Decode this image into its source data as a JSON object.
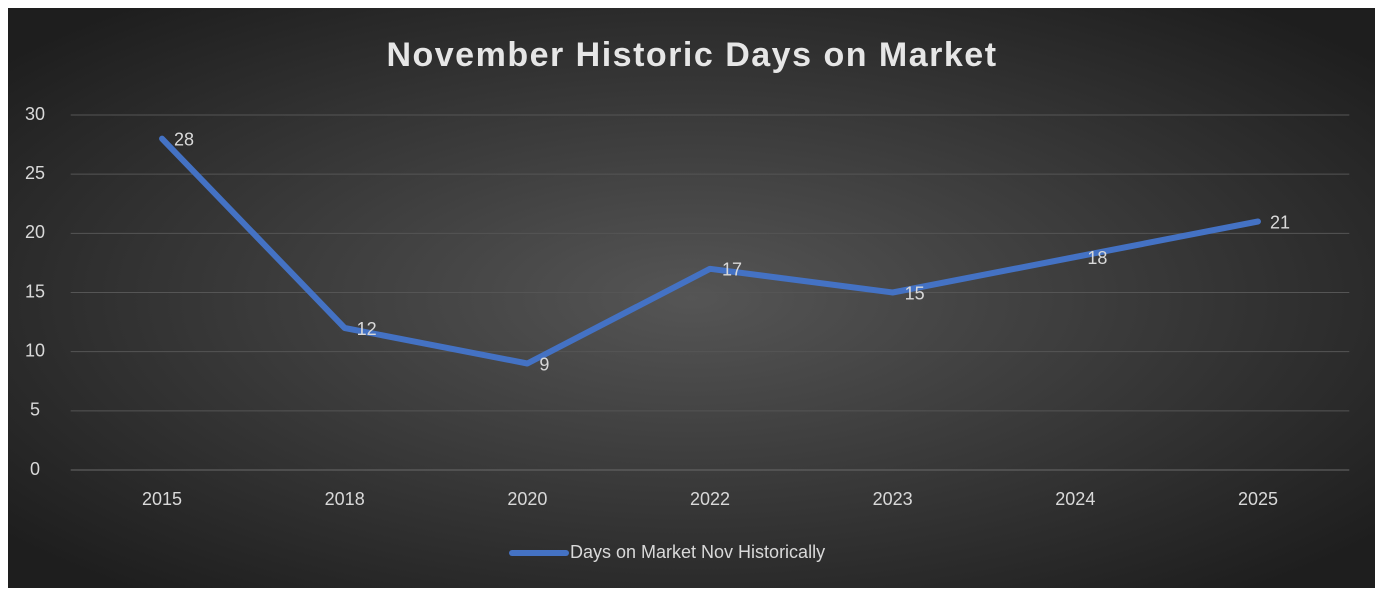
{
  "chart_data": {
    "type": "line",
    "title": "November Historic Days on Market",
    "categories": [
      "2015",
      "2018",
      "2020",
      "2022",
      "2023",
      "2024",
      "2025"
    ],
    "series": [
      {
        "name": "Days on Market Nov Historically",
        "color": "#4472c4",
        "values": [
          28,
          12,
          9,
          17,
          15,
          18,
          21
        ]
      }
    ],
    "ylim": [
      0,
      30
    ],
    "yticks": [
      0,
      5,
      10,
      15,
      20,
      25,
      30
    ],
    "grid": true,
    "legend": "bottom",
    "data_labels": true
  }
}
